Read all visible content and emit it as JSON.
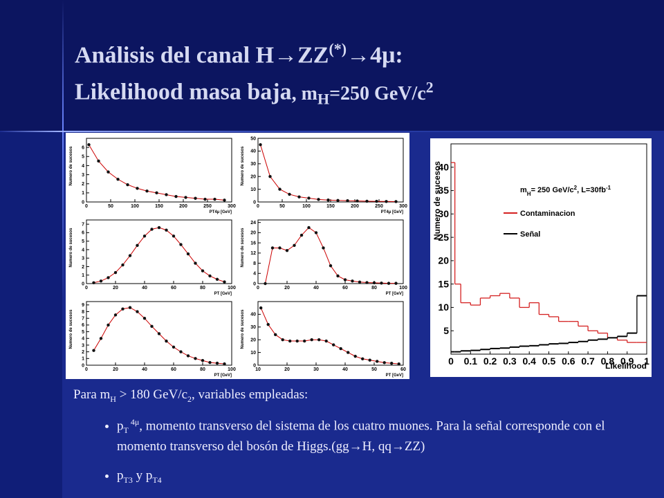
{
  "title": {
    "line1": [
      "Análisis del canal H→ZZ",
      "(*)",
      "→4μ:"
    ],
    "line2": [
      "Likelihood masa baja",
      ", m",
      "H",
      "=250 GeV/c",
      "2"
    ]
  },
  "intro": [
    "Para m",
    "H",
    " > 180 GeV/c",
    "2",
    ", variables empleadas:"
  ],
  "bullets": [
    [
      "p",
      "T",
      " 4μ",
      ", momento transverso del sistema de los cuatro muones. Para la señal corresponde con el momento transverso del bosón de Higgs.(gg→H, qq→ZZ)"
    ],
    [
      "p",
      "T3",
      " y p",
      "T4"
    ]
  ],
  "small_plots": [
    {
      "xlabel": "PT4μ [GeV]",
      "ylabel": "Numero de sucesos",
      "xlim": [
        0,
        300
      ],
      "xticks": [
        0,
        50,
        100,
        150,
        200,
        250,
        300
      ],
      "ylim": [
        0,
        7
      ],
      "yticks": [
        0,
        1,
        2,
        3,
        4,
        5,
        6
      ],
      "x": [
        5,
        25,
        45,
        65,
        85,
        105,
        125,
        145,
        165,
        185,
        205,
        225,
        245,
        265,
        285
      ],
      "y": [
        6.3,
        4.5,
        3.3,
        2.5,
        1.9,
        1.5,
        1.2,
        1.0,
        0.8,
        0.6,
        0.5,
        0.4,
        0.3,
        0.3,
        0.2
      ]
    },
    {
      "xlabel": "PT4μ [GeV]",
      "ylabel": "Numero de sucesos",
      "xlim": [
        0,
        300
      ],
      "xticks": [
        0,
        50,
        100,
        150,
        200,
        250,
        300
      ],
      "ylim": [
        0,
        50
      ],
      "yticks": [
        0,
        10,
        20,
        30,
        40,
        50
      ],
      "x": [
        5,
        25,
        45,
        65,
        85,
        105,
        125,
        145,
        165,
        185,
        205,
        225,
        245,
        265,
        285
      ],
      "y": [
        45,
        20,
        10,
        6,
        4,
        3,
        2,
        1.5,
        1.2,
        1,
        0.8,
        0.6,
        0.5,
        0.4,
        0.3
      ]
    },
    {
      "xlabel": "PT [GeV]",
      "ylabel": "Numero de sucesos",
      "xlim": [
        0,
        100
      ],
      "xticks": [
        0,
        20,
        40,
        60,
        80,
        100
      ],
      "ylim": [
        0,
        7.5
      ],
      "yticks": [
        0,
        1,
        2,
        3,
        4,
        5,
        6,
        7
      ],
      "x": [
        5,
        10,
        15,
        20,
        25,
        30,
        35,
        40,
        45,
        50,
        55,
        60,
        65,
        70,
        75,
        80,
        85,
        90,
        95
      ],
      "y": [
        0.1,
        0.3,
        0.7,
        1.3,
        2.2,
        3.3,
        4.5,
        5.6,
        6.4,
        6.6,
        6.3,
        5.6,
        4.6,
        3.5,
        2.4,
        1.5,
        0.9,
        0.5,
        0.2
      ]
    },
    {
      "xlabel": "PT [GeV]",
      "ylabel": "Numero de sucesos",
      "xlim": [
        0,
        100
      ],
      "xticks": [
        0,
        20,
        40,
        60,
        80,
        100
      ],
      "ylim": [
        0,
        25
      ],
      "yticks": [
        0,
        4,
        8,
        12,
        16,
        20,
        24
      ],
      "x": [
        5,
        10,
        15,
        20,
        25,
        30,
        35,
        40,
        45,
        50,
        55,
        60,
        65,
        70,
        75,
        80,
        85,
        90,
        95
      ],
      "y": [
        0,
        14,
        14,
        13,
        15,
        19,
        22,
        20,
        14,
        7,
        3,
        1.5,
        1,
        0.6,
        0.4,
        0.3,
        0.2,
        0.1,
        0.1
      ]
    },
    {
      "xlabel": "PT [GeV]",
      "ylabel": "Numero de sucesos",
      "xlim": [
        0,
        100
      ],
      "xticks": [
        0,
        20,
        40,
        60,
        80,
        100
      ],
      "ylim": [
        0,
        9.5
      ],
      "yticks": [
        0,
        1,
        2,
        3,
        4,
        5,
        6,
        7,
        8,
        9
      ],
      "x": [
        5,
        10,
        15,
        20,
        25,
        30,
        35,
        40,
        45,
        50,
        55,
        60,
        65,
        70,
        75,
        80,
        85,
        90,
        95
      ],
      "y": [
        2.2,
        4,
        6,
        7.5,
        8.4,
        8.6,
        8,
        7,
        5.8,
        4.7,
        3.6,
        2.7,
        2,
        1.4,
        1,
        0.7,
        0.4,
        0.3,
        0.2
      ]
    },
    {
      "xlabel": "PT [GeV]",
      "ylabel": "Numero de sucesos",
      "xlim": [
        10,
        60
      ],
      "xticks": [
        10,
        20,
        30,
        40,
        50,
        60
      ],
      "ylim": [
        0,
        50
      ],
      "yticks": [
        0,
        10,
        20,
        30,
        40
      ],
      "x": [
        11,
        13.5,
        16,
        18.5,
        21,
        23.5,
        26,
        28.5,
        31,
        33.5,
        36,
        38.5,
        41,
        43.5,
        46,
        48.5,
        51,
        53.5,
        56,
        58.5
      ],
      "y": [
        45,
        32,
        24,
        20,
        19,
        19,
        19,
        20,
        20,
        19,
        16,
        13,
        10,
        7,
        5,
        4,
        3,
        2,
        1.5,
        1
      ]
    }
  ],
  "chart_data": {
    "type": "histogram",
    "xlabel": "Likelihood",
    "ylabel": "Numero de sucesos",
    "annotation": [
      "m",
      "H",
      "= 250 GeV/c",
      "2",
      ",  L=30fb",
      "-1"
    ],
    "xlim": [
      0,
      1
    ],
    "ylim": [
      0,
      45
    ],
    "xticks": [
      0,
      0.1,
      0.2,
      0.3,
      0.4,
      0.5,
      0.6,
      0.7,
      0.8,
      0.9,
      1
    ],
    "yticks": [
      5,
      10,
      15,
      20,
      25,
      30,
      35,
      40
    ],
    "bins": [
      0,
      0.02,
      0.05,
      0.1,
      0.15,
      0.2,
      0.25,
      0.3,
      0.35,
      0.4,
      0.45,
      0.5,
      0.55,
      0.6,
      0.65,
      0.7,
      0.75,
      0.8,
      0.85,
      0.9,
      0.95,
      1
    ],
    "series": [
      {
        "name": "Contaminacion",
        "color": "#d42020",
        "values": [
          41,
          15,
          11,
          10.5,
          12,
          12.5,
          13,
          12,
          10,
          11,
          8.5,
          8,
          7,
          7,
          6,
          5,
          4.5,
          3.5,
          3,
          2.5,
          2.5
        ]
      },
      {
        "name": "Señal",
        "color": "#000000",
        "values": [
          0.5,
          0.5,
          0.7,
          0.8,
          1,
          1.2,
          1.3,
          1.5,
          1.7,
          1.8,
          2,
          2.2,
          2.3,
          2.5,
          2.7,
          3,
          3.2,
          3.5,
          3.8,
          4.5,
          12.5
        ]
      }
    ]
  }
}
